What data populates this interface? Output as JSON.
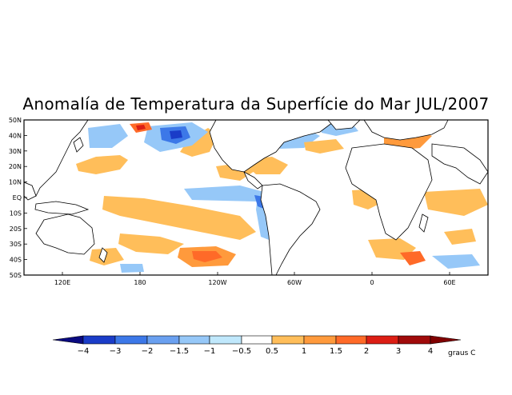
{
  "title": "Anomalía de Temperatura da Superfície do Mar JUL/2007",
  "lat_labels": [
    "50N",
    "40N",
    "30N",
    "20N",
    "10N",
    "EQ",
    "10S",
    "20S",
    "30S",
    "40S",
    "50S"
  ],
  "lon_labels": [
    "120E",
    "180",
    "120W",
    "60W",
    "0",
    "60E"
  ],
  "colorbar": {
    "unit_label": "graus C",
    "tick_labels": [
      "−4",
      "−3",
      "−2",
      "−1.5",
      "−1",
      "−0.5",
      "0.5",
      "1",
      "1.5",
      "2",
      "3",
      "4"
    ],
    "colors": [
      "#0a0a80",
      "#1a3cc8",
      "#3c78e8",
      "#6aa0f0",
      "#96c8f8",
      "#c0e8fc",
      "#ffffff",
      "#ffbe5a",
      "#ff9a3c",
      "#ff6a28",
      "#dc1e14",
      "#a00a0a",
      "#800000"
    ]
  },
  "anomaly_patches": [
    {
      "region": "north-pacific-cold-core",
      "color": "#1a3cc8"
    },
    {
      "region": "north-pacific-warm",
      "color": "#dc1e14"
    },
    {
      "region": "peru-coast-cold",
      "color": "#3c78e8"
    },
    {
      "region": "mediterranean-warm",
      "color": "#dc1e14"
    },
    {
      "region": "south-atlantic-warm",
      "color": "#ff6a28"
    }
  ]
}
